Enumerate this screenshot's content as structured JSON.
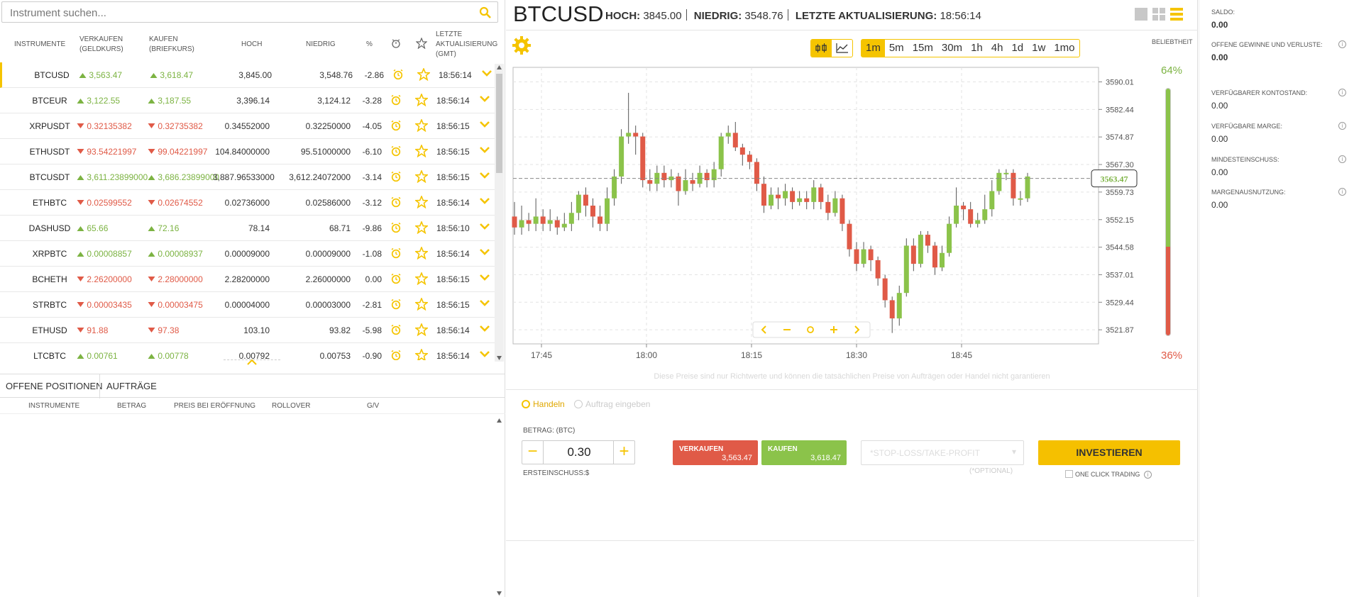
{
  "search": {
    "placeholder": "Instrument suchen..."
  },
  "table": {
    "headers": {
      "instrumente": "INSTRUMENTE",
      "verkaufen": "VERKAUFEN",
      "verkaufen_sub": "(GELDKURS)",
      "kaufen": "KAUFEN",
      "kaufen_sub": "(BRIEFKURS)",
      "hoch": "HOCH",
      "niedrig": "NIEDRIG",
      "pct": "%",
      "update": "LETZTE",
      "update2": "AKTUALISIERUNG",
      "update3": "(GMT)"
    },
    "rows": [
      {
        "sym": "BTCUSD",
        "sell": "3,563.47",
        "buy": "3,618.47",
        "dir": "up",
        "hi": "3,845.00",
        "lo": "3,548.76",
        "pct": "-2.86",
        "time": "18:56:14"
      },
      {
        "sym": "BTCEUR",
        "sell": "3,122.55",
        "buy": "3,187.55",
        "dir": "up",
        "hi": "3,396.14",
        "lo": "3,124.12",
        "pct": "-3.28",
        "time": "18:56:14"
      },
      {
        "sym": "XRPUSDT",
        "sell": "0.32135382",
        "buy": "0.32735382",
        "dir": "dn",
        "hi": "0.34552000",
        "lo": "0.32250000",
        "pct": "-4.05",
        "time": "18:56:15"
      },
      {
        "sym": "ETHUSDT",
        "sell": "93.54221997",
        "buy": "99.04221997",
        "dir": "dn",
        "hi": "104.84000000",
        "lo": "95.51000000",
        "pct": "-6.10",
        "time": "18:56:15"
      },
      {
        "sym": "BTCUSDT",
        "sell": "3,611.23899000",
        "buy": "3,686.23899000",
        "dir": "up",
        "hi": "3,887.96533000",
        "lo": "3,612.24072000",
        "pct": "-3.14",
        "time": "18:56:15"
      },
      {
        "sym": "ETHBTC",
        "sell": "0.02599552",
        "buy": "0.02674552",
        "dir": "dn",
        "hi": "0.02736000",
        "lo": "0.02586000",
        "pct": "-3.12",
        "time": "18:56:14"
      },
      {
        "sym": "DASHUSD",
        "sell": "65.66",
        "buy": "72.16",
        "dir": "up",
        "hi": "78.14",
        "lo": "68.71",
        "pct": "-9.86",
        "time": "18:56:10"
      },
      {
        "sym": "XRPBTC",
        "sell": "0.00008857",
        "buy": "0.00008937",
        "dir": "up",
        "hi": "0.00009000",
        "lo": "0.00009000",
        "pct": "-1.08",
        "time": "18:56:14"
      },
      {
        "sym": "BCHETH",
        "sell": "2.26200000",
        "buy": "2.28000000",
        "dir": "dn",
        "hi": "2.28200000",
        "lo": "2.26000000",
        "pct": "0.00",
        "time": "18:56:15"
      },
      {
        "sym": "STRBTC",
        "sell": "0.00003435",
        "buy": "0.00003475",
        "dir": "dn",
        "hi": "0.00004000",
        "lo": "0.00003000",
        "pct": "-2.81",
        "time": "18:56:15"
      },
      {
        "sym": "ETHUSD",
        "sell": "91.88",
        "buy": "97.38",
        "dir": "dn",
        "hi": "103.10",
        "lo": "93.82",
        "pct": "-5.98",
        "time": "18:56:14"
      },
      {
        "sym": "LTCBTC",
        "sell": "0.00761",
        "buy": "0.00778",
        "dir": "up",
        "hi": "0.00792",
        "lo": "0.00753",
        "pct": "-0.90",
        "time": "18:56:14"
      }
    ]
  },
  "bottom_tabs": {
    "offene": "OFFENE POSITIONEN",
    "auftraege": "AUFTRÄGE"
  },
  "bottom_headers": {
    "instrumente": "INSTRUMENTE",
    "betrag": "BETRAG",
    "preis": "PREIS BEI ERÖFFNUNG",
    "rollover": "ROLLOVER",
    "gv": "G/V"
  },
  "header": {
    "symbol": "BTCUSD",
    "hoch_label": "HOCH:",
    "hoch": "3845.00",
    "niedrig_label": "NIEDRIG:",
    "niedrig": "3548.76",
    "update_label": "LETZTE AKTUALISIERUNG:",
    "update": "18:56:14"
  },
  "timeframes": [
    "1m",
    "5m",
    "15m",
    "30m",
    "1h",
    "4h",
    "1d",
    "1w",
    "1mo"
  ],
  "active_timeframe": "1m",
  "beliebtheit": "BELIEBTHEIT",
  "sentiment": {
    "buy_pct": "64%",
    "sell_pct": "36%",
    "buy": 64
  },
  "chart_data": {
    "type": "candlestick",
    "x_ticks": [
      "17:45",
      "18:00",
      "18:15",
      "18:30",
      "18:45"
    ],
    "y_ticks": [
      "3590.01",
      "3582.44",
      "3574.87",
      "3567.30",
      "3559.73",
      "3552.15",
      "3544.58",
      "3537.01",
      "3529.44",
      "3521.87"
    ],
    "ylim": [
      3518,
      3594
    ],
    "current_price": "3563.47",
    "candles": [
      [
        3553,
        3550,
        3557,
        3548
      ],
      [
        3550,
        3552,
        3556,
        3548
      ],
      [
        3552,
        3551,
        3554,
        3549
      ],
      [
        3551,
        3553,
        3558,
        3549
      ],
      [
        3553,
        3551,
        3555,
        3549
      ],
      [
        3551,
        3552,
        3555,
        3549
      ],
      [
        3552,
        3550,
        3553,
        3548
      ],
      [
        3550,
        3551,
        3554,
        3549
      ],
      [
        3551,
        3554,
        3557,
        3549
      ],
      [
        3554,
        3559,
        3560,
        3552
      ],
      [
        3559,
        3556,
        3561,
        3553
      ],
      [
        3556,
        3553,
        3558,
        3550
      ],
      [
        3553,
        3551,
        3556,
        3549
      ],
      [
        3551,
        3558,
        3561,
        3549
      ],
      [
        3558,
        3564,
        3566,
        3556
      ],
      [
        3564,
        3575,
        3577,
        3562
      ],
      [
        3575,
        3576,
        3587,
        3573
      ],
      [
        3576,
        3575,
        3578,
        3570
      ],
      [
        3575,
        3563,
        3576,
        3561
      ],
      [
        3563,
        3562,
        3566,
        3560
      ],
      [
        3562,
        3565,
        3567,
        3560
      ],
      [
        3565,
        3563,
        3567,
        3561
      ],
      [
        3563,
        3564,
        3566,
        3561
      ],
      [
        3564,
        3560,
        3565,
        3556
      ],
      [
        3560,
        3563,
        3566,
        3559
      ],
      [
        3563,
        3562,
        3565,
        3560
      ],
      [
        3562,
        3565,
        3567,
        3561
      ],
      [
        3565,
        3563,
        3566,
        3561
      ],
      [
        3563,
        3566,
        3568,
        3561
      ],
      [
        3566,
        3575,
        3576,
        3564
      ],
      [
        3575,
        3576,
        3578,
        3573
      ],
      [
        3576,
        3572,
        3579,
        3571
      ],
      [
        3572,
        3570,
        3573,
        3567
      ],
      [
        3570,
        3568,
        3571,
        3566
      ],
      [
        3568,
        3562,
        3569,
        3560
      ],
      [
        3562,
        3556,
        3564,
        3554
      ],
      [
        3556,
        3559,
        3561,
        3555
      ],
      [
        3559,
        3558,
        3561,
        3555
      ],
      [
        3558,
        3560,
        3562,
        3556
      ],
      [
        3560,
        3557,
        3561,
        3555
      ],
      [
        3557,
        3558,
        3560,
        3556
      ],
      [
        3558,
        3557,
        3560,
        3555
      ],
      [
        3557,
        3561,
        3563,
        3555
      ],
      [
        3561,
        3557,
        3562,
        3555
      ],
      [
        3557,
        3554,
        3559,
        3552
      ],
      [
        3554,
        3558,
        3560,
        3553
      ],
      [
        3558,
        3551,
        3559,
        3549
      ],
      [
        3551,
        3544,
        3552,
        3542
      ],
      [
        3544,
        3540,
        3546,
        3538
      ],
      [
        3540,
        3544,
        3546,
        3539
      ],
      [
        3544,
        3541,
        3545,
        3538
      ],
      [
        3541,
        3536,
        3542,
        3534
      ],
      [
        3536,
        3530,
        3537,
        3528
      ],
      [
        3530,
        3525,
        3531,
        3521
      ],
      [
        3525,
        3532,
        3534,
        3523
      ],
      [
        3532,
        3545,
        3547,
        3531
      ],
      [
        3545,
        3540,
        3547,
        3538
      ],
      [
        3540,
        3548,
        3549,
        3539
      ],
      [
        3548,
        3545,
        3549,
        3543
      ],
      [
        3545,
        3539,
        3546,
        3537
      ],
      [
        3539,
        3543,
        3545,
        3538
      ],
      [
        3543,
        3551,
        3553,
        3542
      ],
      [
        3551,
        3556,
        3561,
        3550
      ],
      [
        3556,
        3555,
        3557,
        3552
      ],
      [
        3555,
        3551,
        3557,
        3550
      ],
      [
        3551,
        3552,
        3554,
        3550
      ],
      [
        3552,
        3555,
        3559,
        3551
      ],
      [
        3555,
        3560,
        3563,
        3553
      ],
      [
        3560,
        3565,
        3566,
        3559
      ],
      [
        3565,
        3565,
        3566,
        3563
      ],
      [
        3565,
        3558,
        3566,
        3556
      ],
      [
        3558,
        3558,
        3560,
        3556
      ],
      [
        3558,
        3564,
        3565,
        3557
      ]
    ]
  },
  "disclaimer": "Diese Preise sind nur Richtwerte und können die tatsächlichen Preise von Aufträgen oder Handel nicht garantieren",
  "trade": {
    "handeln": "Handeln",
    "auftrag": "Auftrag eingeben",
    "betrag_label": "BETRAG: (BTC)",
    "betrag": "0.30",
    "ersteinschuss": "ERSTEINSCHUSS:$",
    "sell_label": "VERKAUFEN",
    "sell_price": "3,563.47",
    "buy_label": "KAUFEN",
    "buy_price": "3,618.47",
    "stoploss": "*STOP-LOSS/TAKE-PROFIT",
    "optional": "(*OPTIONAL)",
    "invest": "INVESTIEREN",
    "oneclick": "ONE CLICK TRADING"
  },
  "account": [
    {
      "label": "SALDO:",
      "value": "0.00",
      "bold": true
    },
    {
      "label": "OFFENE GEWINNE UND VERLUSTE:",
      "value": "0.00",
      "bold": true
    },
    {
      "label": "VERFÜGBARER KONTOSTAND:",
      "value": "0.00"
    },
    {
      "label": "VERFÜGBARE MARGE:",
      "value": "0.00"
    },
    {
      "label": "MINDESTEINSCHUSS:",
      "value": "0.00"
    },
    {
      "label": "MARGENAUSNUTZUNG:",
      "value": "0.00"
    }
  ],
  "colors": {
    "accent": "#f5c400",
    "up": "#7cb342",
    "down": "#e05a47"
  }
}
